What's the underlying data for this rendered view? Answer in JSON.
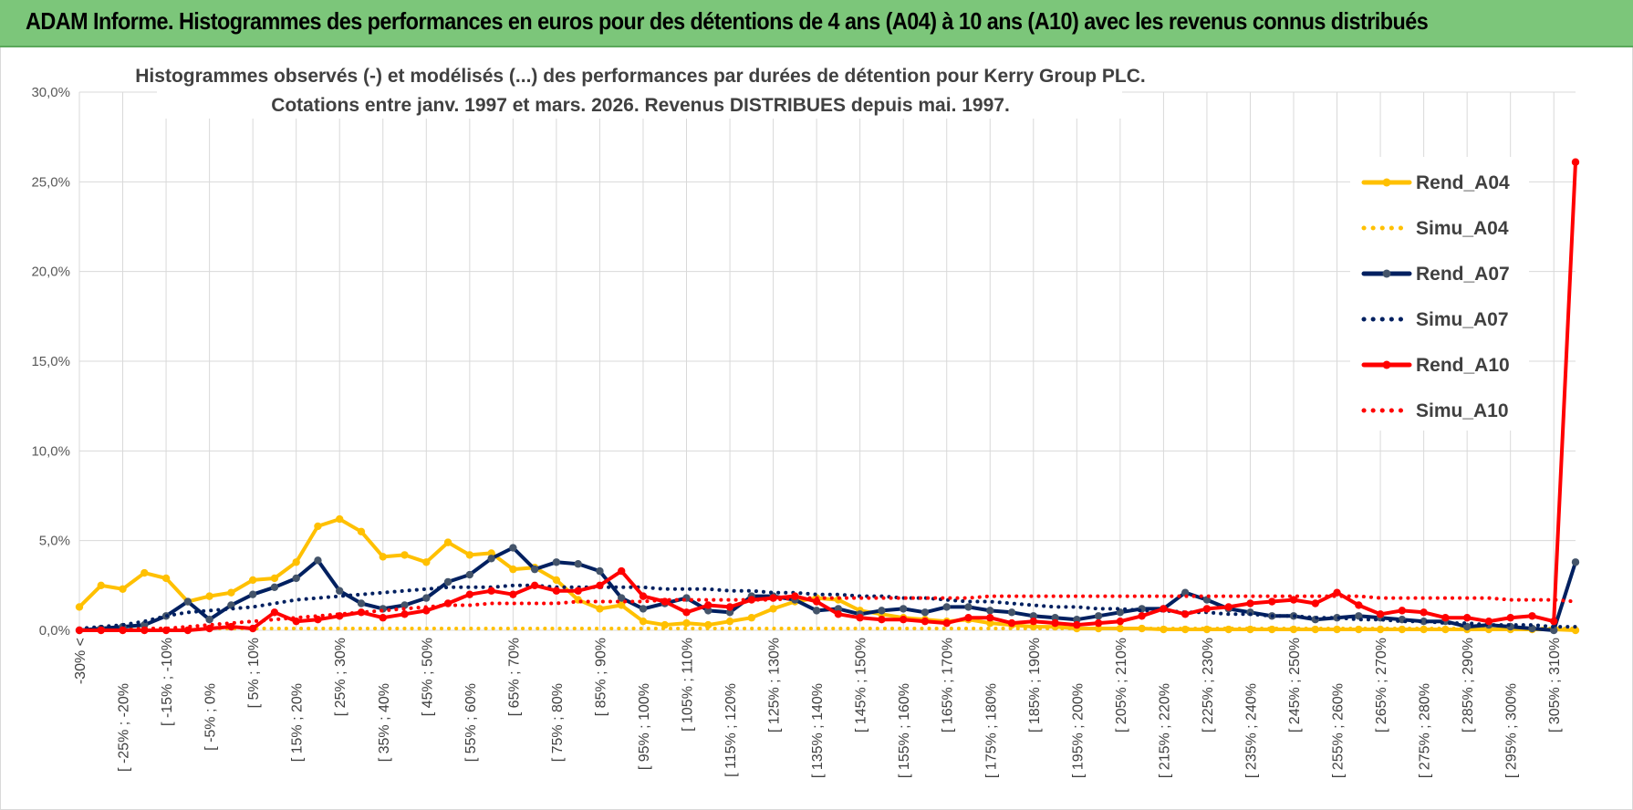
{
  "banner": {
    "title": "ADAM Informe. Histogrammes des performances en euros pour des détentions de 4 ans (A04) à 10 ans (A10) avec les revenus connus distribués"
  },
  "chart_data": {
    "type": "line",
    "title": "Histogrammes observés (-) et modélisés (...) des performances par durées de détention pour Kerry Group PLC.",
    "subtitle": "Cotations entre janv. 1997 et mars. 2026.  Revenus DISTRIBUES depuis mai. 1997.",
    "xlabel": "",
    "ylabel": "",
    "ylim": [
      0,
      30
    ],
    "y_ticks": [
      "0,0%",
      "5,0%",
      "10,0%",
      "15,0%",
      "20,0%",
      "25,0%",
      "30,0%"
    ],
    "grid": true,
    "legend_position": "right",
    "x_labels": [
      "-30% <",
      "[ -25% ; -20%",
      "[ -15% ; -10%",
      "[ -5% ; 0%",
      "[ 5% ; 10%",
      "[ 15% ; 20%",
      "[ 25% ; 30%",
      "[ 35% ; 40%",
      "[ 45% ; 50%",
      "[ 55% ; 60%",
      "[ 65% ; 70%",
      "[ 75% ; 80%",
      "[ 85% ; 90%",
      "[ 95% ; 100%",
      "[ 105% ; 110%",
      "[ 115% ; 120%",
      "[ 125% ; 130%",
      "[ 135% ; 140%",
      "[ 145% ; 150%",
      "[ 155% ; 160%",
      "[ 165% ; 170%",
      "[ 175% ; 180%",
      "[ 185% ; 190%",
      "[ 195% ; 200%",
      "[ 205% ; 210%",
      "[ 215% ; 220%",
      "[ 225% ; 230%",
      "[ 235% ; 240%",
      "[ 245% ; 250%",
      "[ 255% ; 260%",
      "[ 265% ; 270%",
      "[ 275% ; 280%",
      "[ 285% ; 290%",
      "[ 295% ; 300%",
      "[ 305% ; 310%"
    ],
    "categories_count": 70,
    "series": [
      {
        "name": "Rend_A04",
        "style": "solid",
        "color": "#ffc000",
        "values": [
          1.3,
          2.5,
          2.3,
          3.2,
          2.9,
          1.6,
          1.9,
          2.1,
          2.8,
          2.9,
          3.8,
          5.8,
          6.2,
          5.5,
          4.1,
          4.2,
          3.8,
          4.9,
          4.2,
          4.3,
          3.4,
          3.5,
          2.8,
          1.7,
          1.2,
          1.4,
          0.5,
          0.3,
          0.4,
          0.3,
          0.5,
          0.7,
          1.2,
          1.6,
          1.8,
          1.7,
          1.1,
          0.9,
          0.7,
          0.6,
          0.5,
          0.6,
          0.4,
          0.3,
          0.2,
          0.2,
          0.1,
          0.1,
          0.1,
          0.1,
          0.05,
          0.05,
          0.05,
          0.05,
          0.05,
          0.05,
          0.05,
          0.05,
          0.05,
          0.05,
          0.05,
          0.05,
          0.05,
          0.05,
          0.05,
          0.05,
          0.05,
          0.05,
          0.05,
          0.0
        ]
      },
      {
        "name": "Simu_A04",
        "style": "dotted",
        "color": "#ffc000",
        "values": [
          0.1,
          0.1,
          0.1,
          0.1,
          0.1,
          0.1,
          0.1,
          0.1,
          0.1,
          0.1,
          0.1,
          0.1,
          0.1,
          0.1,
          0.1,
          0.1,
          0.1,
          0.1,
          0.1,
          0.1,
          0.1,
          0.1,
          0.1,
          0.1,
          0.1,
          0.1,
          0.1,
          0.1,
          0.1,
          0.1,
          0.1,
          0.1,
          0.1,
          0.1,
          0.1,
          0.1,
          0.1,
          0.1,
          0.1,
          0.1,
          0.1,
          0.1,
          0.1,
          0.1,
          0.1,
          0.1,
          0.1,
          0.1,
          0.1,
          0.1,
          0.1,
          0.1,
          0.1,
          0.1,
          0.1,
          0.1,
          0.1,
          0.1,
          0.1,
          0.1,
          0.1,
          0.1,
          0.1,
          0.1,
          0.1,
          0.1,
          0.1,
          0.1,
          0.1,
          0.1
        ]
      },
      {
        "name": "Rend_A07",
        "style": "solid",
        "color": "#002060",
        "values": [
          0.0,
          0.1,
          0.2,
          0.3,
          0.8,
          1.6,
          0.6,
          1.4,
          2.0,
          2.4,
          2.9,
          3.9,
          2.2,
          1.5,
          1.2,
          1.4,
          1.8,
          2.7,
          3.1,
          4.0,
          4.6,
          3.4,
          3.8,
          3.7,
          3.3,
          1.8,
          1.2,
          1.5,
          1.8,
          1.1,
          1.0,
          1.9,
          1.9,
          1.7,
          1.1,
          1.2,
          0.9,
          1.1,
          1.2,
          1.0,
          1.3,
          1.3,
          1.1,
          1.0,
          0.8,
          0.7,
          0.6,
          0.8,
          1.0,
          1.2,
          1.2,
          2.1,
          1.7,
          1.2,
          1.0,
          0.8,
          0.8,
          0.6,
          0.7,
          0.8,
          0.7,
          0.6,
          0.5,
          0.5,
          0.2,
          0.3,
          0.2,
          0.1,
          0.0,
          3.8
        ]
      },
      {
        "name": "Simu_A07",
        "style": "dotted",
        "color": "#002060",
        "values": [
          0.1,
          0.2,
          0.3,
          0.5,
          0.8,
          1.0,
          1.1,
          1.2,
          1.3,
          1.5,
          1.7,
          1.8,
          1.9,
          2.0,
          2.1,
          2.2,
          2.3,
          2.4,
          2.4,
          2.4,
          2.5,
          2.5,
          2.4,
          2.4,
          2.4,
          2.4,
          2.4,
          2.3,
          2.3,
          2.3,
          2.2,
          2.2,
          2.1,
          2.1,
          2.0,
          2.0,
          1.9,
          1.9,
          1.8,
          1.8,
          1.7,
          1.6,
          1.6,
          1.5,
          1.4,
          1.3,
          1.3,
          1.2,
          1.2,
          1.1,
          1.1,
          1.0,
          1.0,
          0.9,
          0.9,
          0.8,
          0.8,
          0.7,
          0.7,
          0.6,
          0.6,
          0.5,
          0.5,
          0.4,
          0.4,
          0.3,
          0.3,
          0.3,
          0.2,
          0.2
        ]
      },
      {
        "name": "Rend_A10",
        "style": "solid",
        "color": "#ff0000",
        "values": [
          0.0,
          0.0,
          0.0,
          0.0,
          0.0,
          0.0,
          0.1,
          0.2,
          0.1,
          1.0,
          0.5,
          0.6,
          0.8,
          1.0,
          0.7,
          0.9,
          1.1,
          1.5,
          2.0,
          2.2,
          2.0,
          2.5,
          2.2,
          2.2,
          2.5,
          3.3,
          1.9,
          1.6,
          1.0,
          1.4,
          1.3,
          1.7,
          1.8,
          1.9,
          1.6,
          0.9,
          0.7,
          0.6,
          0.6,
          0.5,
          0.4,
          0.7,
          0.7,
          0.4,
          0.5,
          0.4,
          0.3,
          0.4,
          0.5,
          0.8,
          1.2,
          0.9,
          1.2,
          1.3,
          1.5,
          1.6,
          1.7,
          1.5,
          2.1,
          1.4,
          0.9,
          1.1,
          1.0,
          0.7,
          0.7,
          0.5,
          0.7,
          0.8,
          0.5,
          26.1
        ]
      },
      {
        "name": "Simu_A10",
        "style": "dotted",
        "color": "#ff0000",
        "values": [
          0.0,
          0.0,
          0.0,
          0.1,
          0.1,
          0.2,
          0.3,
          0.4,
          0.5,
          0.6,
          0.7,
          0.8,
          0.9,
          1.0,
          1.1,
          1.2,
          1.3,
          1.4,
          1.4,
          1.5,
          1.5,
          1.5,
          1.5,
          1.6,
          1.6,
          1.6,
          1.6,
          1.7,
          1.7,
          1.7,
          1.7,
          1.7,
          1.7,
          1.8,
          1.8,
          1.8,
          1.8,
          1.8,
          1.8,
          1.8,
          1.8,
          1.8,
          1.9,
          1.9,
          1.9,
          1.9,
          1.9,
          1.9,
          1.9,
          1.9,
          1.9,
          1.9,
          1.9,
          1.9,
          1.9,
          1.9,
          1.9,
          1.9,
          1.9,
          1.9,
          1.8,
          1.8,
          1.8,
          1.8,
          1.8,
          1.8,
          1.7,
          1.7,
          1.7,
          1.6
        ]
      }
    ]
  }
}
